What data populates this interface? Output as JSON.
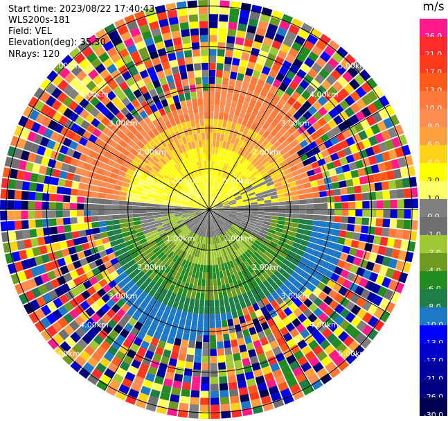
{
  "header": {
    "start_time": "Start time: 2023/08/22 17:40:43",
    "instrument": "WLS200s-181",
    "field": "Field: VEL",
    "elevation": "Elevation(deg): 35.30",
    "nrays": "NRays: 120"
  },
  "colorbar": {
    "unit": "m/s",
    "levels": [
      {
        "label": "26.0",
        "color": "#ff1a8c"
      },
      {
        "label": "21.0",
        "color": "#ff2a2a"
      },
      {
        "label": "17.0",
        "color": "#ff3a1a"
      },
      {
        "label": "13.0",
        "color": "#ff5a1a"
      },
      {
        "label": "10.0",
        "color": "#ff7a3a"
      },
      {
        "label": "8.0",
        "color": "#ff8c50"
      },
      {
        "label": "6.0",
        "color": "#ffa040"
      },
      {
        "label": "4.0",
        "color": "#ffd21a"
      },
      {
        "label": "2.0",
        "color": "#ffff00"
      },
      {
        "label": "1.0",
        "color": "#ffff66"
      },
      {
        "label": "0.0",
        "color": "#808080"
      },
      {
        "label": "-1.0",
        "color": "#707070"
      },
      {
        "label": "-2.0",
        "color": "#a0c832"
      },
      {
        "label": "-4.0",
        "color": "#6e9a22"
      },
      {
        "label": "-6.0",
        "color": "#228b22"
      },
      {
        "label": "-8.0",
        "color": "#1e7e46"
      },
      {
        "label": "-10.0",
        "color": "#1e78c8"
      },
      {
        "label": "-13.0",
        "color": "#0000ff"
      },
      {
        "label": "-17.0",
        "color": "#0000c8"
      },
      {
        "label": "-21.0",
        "color": "#0000a0"
      },
      {
        "label": "-26.0",
        "color": "#000080"
      },
      {
        "label": "-30.0",
        "color": "#000050"
      }
    ]
  },
  "chart_data": {
    "type": "heatmap",
    "projection": "polar (PPI)",
    "field": "VEL",
    "nrays": 120,
    "range_rings_km": [
      1.0,
      2.0,
      3.0,
      4.0,
      5.0
    ],
    "range_ring_labels": [
      "1.00km",
      "2.00km",
      "3.00km",
      "4.00km",
      "5.00km"
    ],
    "spokes_deg": [
      0,
      30,
      60,
      90,
      120,
      150,
      180,
      210,
      240,
      270,
      300,
      330
    ],
    "description_values": {
      "inner_north_sector_ms": [
        1.0,
        10.0
      ],
      "inner_south_sector_ms": [
        -10.0,
        -2.0
      ],
      "outer_noise_range_ms": [
        -30.0,
        26.0
      ]
    }
  }
}
